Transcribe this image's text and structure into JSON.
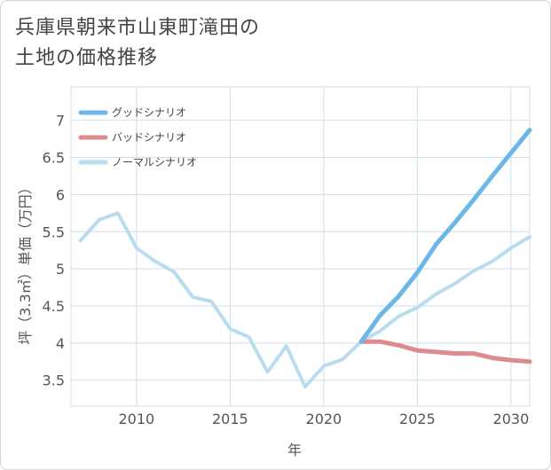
{
  "title_lines": [
    "兵庫県朝来市山東町滝田の",
    "土地の価格推移"
  ],
  "chart_data": {
    "type": "line",
    "xlabel": "年",
    "ylabel": "坪（3.3㎡）単価（万円）",
    "xlim": [
      2006.5,
      2031
    ],
    "ylim": [
      3.15,
      7.45
    ],
    "xticks": [
      2010,
      2015,
      2020,
      2025,
      2030
    ],
    "yticks": [
      3.5,
      4,
      4.5,
      5,
      5.5,
      6,
      6.5,
      7
    ],
    "ytick_labels": [
      "3.5",
      "4",
      "4.5",
      "5",
      "5.5",
      "6",
      "6.5",
      "7"
    ],
    "grid": true,
    "legend_position": "top-left",
    "series": [
      {
        "name": "グッドシナリオ",
        "color": "#6bb8e8",
        "x": [
          2022,
          2023,
          2024,
          2025,
          2026,
          2027,
          2028,
          2029,
          2030,
          2031
        ],
        "values": [
          4.02,
          4.37,
          4.63,
          4.95,
          5.33,
          5.62,
          5.93,
          6.25,
          6.56,
          6.87
        ]
      },
      {
        "name": "バッドシナリオ",
        "color": "#de8a91",
        "x": [
          2022,
          2023,
          2024,
          2025,
          2026,
          2027,
          2028,
          2029,
          2030,
          2031
        ],
        "values": [
          4.02,
          4.02,
          3.97,
          3.9,
          3.88,
          3.86,
          3.86,
          3.8,
          3.77,
          3.75
        ]
      },
      {
        "name": "ノーマルシナリオ",
        "color": "#b9dcee",
        "x": [
          2007,
          2008,
          2009,
          2010,
          2011,
          2012,
          2013,
          2014,
          2015,
          2016,
          2017,
          2018,
          2019,
          2020,
          2021,
          2022,
          2023,
          2024,
          2025,
          2026,
          2027,
          2028,
          2029,
          2030,
          2031
        ],
        "values": [
          5.38,
          5.66,
          5.75,
          5.28,
          5.1,
          4.96,
          4.62,
          4.56,
          4.19,
          4.08,
          3.61,
          3.96,
          3.41,
          3.69,
          3.78,
          4.02,
          4.16,
          4.36,
          4.48,
          4.66,
          4.8,
          4.97,
          5.1,
          5.28,
          5.43
        ]
      }
    ]
  }
}
